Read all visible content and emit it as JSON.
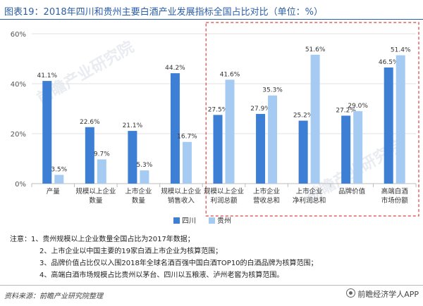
{
  "title": "图表19：2018年四川和贵州主要白酒产业发展指标全国占比对比（单位：%）",
  "chart_data": {
    "type": "bar",
    "categories": [
      [
        "产量"
      ],
      [
        "规模以上企业",
        "数量"
      ],
      [
        "上市企业",
        "数量"
      ],
      [
        "规模以上企业",
        "销售收入"
      ],
      [
        "规模以上企业",
        "利润总额"
      ],
      [
        "上市企业",
        "营收总和"
      ],
      [
        "上市企业",
        "净利润总和"
      ],
      [
        "品牌价值"
      ],
      [
        "高端白酒",
        "市场份额"
      ]
    ],
    "series": [
      {
        "name": "四川",
        "color": "#3e7fd6",
        "values": [
          41.1,
          22.6,
          21.1,
          44.2,
          27.5,
          27.9,
          25.2,
          27.2,
          46.5
        ]
      },
      {
        "name": "贵州",
        "color": "#a6cbf3",
        "values": [
          3.5,
          9.7,
          5.3,
          16.7,
          41.6,
          35.3,
          51.6,
          29.0,
          51.4
        ]
      }
    ],
    "ylim": [
      0,
      60
    ],
    "yticks": [
      0,
      20,
      40,
      60
    ],
    "ytick_labels": [
      "0%",
      "20%",
      "40%",
      "60%"
    ],
    "highlight_categories": [
      4,
      5,
      6,
      7,
      8
    ],
    "grid": true,
    "legend_position": "bottom-center"
  },
  "notes": [
    "注意：1、贵州规模以上企业数量全国占比为2017年数据；",
    "2、上市企业以中国主要的19家白酒上市企业为核算范围；",
    "3、品牌价值占比仅以入围2018年全球名酒百强中国白酒TOP10的白酒品牌为核算范围；",
    "4、高端白酒市场规模占比贵州以茅台、四川以五粮液、泸州老窖为核算范围。"
  ],
  "watermark": "前瞻产业研究院",
  "source": "资料来源：前瞻产业研究院整理",
  "brand": "前瞻经济学人APP"
}
